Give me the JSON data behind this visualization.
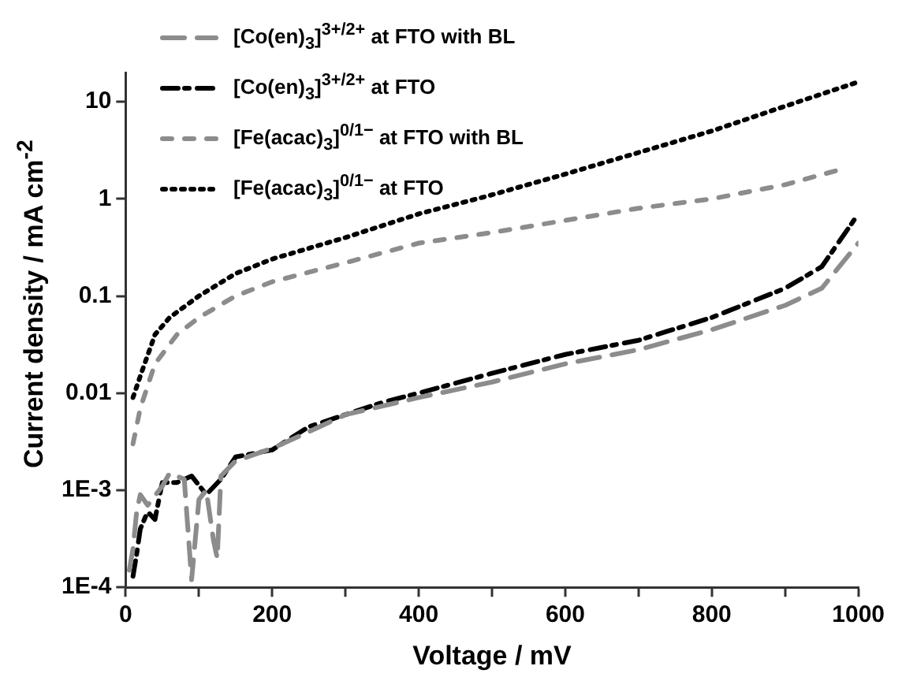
{
  "chart_data": {
    "type": "line",
    "xlabel": "Voltage / mV",
    "ylabel": "Current density / mA cm$^{-2}$",
    "log": "y",
    "legend": "top left",
    "grid": false,
    "marker": "none",
    "xlim": [
      0,
      1000
    ],
    "xticks": [
      0,
      {
        "value": 100,
        "label": null
      },
      200,
      {
        "value": 300,
        "label": null
      },
      400,
      {
        "value": 500,
        "label": null
      },
      600,
      {
        "value": 700,
        "label": null
      },
      800,
      {
        "value": 900,
        "label": null
      },
      1000
    ],
    "ylim": [
      0.0001,
      20
    ],
    "yticks": [
      {
        "value": 0.0001,
        "label": "1E-4"
      },
      {
        "value": 0.001,
        "label": "1E-3"
      },
      0.01,
      0.1,
      1,
      10
    ],
    "series": [
      {
        "name": "[Co(en)$_{3}$]$^{3+/2+}$ at FTO with BL",
        "color": "#8c8c8c",
        "line_style": "dashed",
        "x": [
          5,
          10,
          15,
          20,
          30,
          50,
          60,
          80,
          90,
          100,
          110,
          120,
          125,
          130,
          150,
          200,
          250,
          300,
          400,
          500,
          600,
          700,
          800,
          900,
          950,
          1000
        ],
        "values": [
          0.00015,
          0.00025,
          0.0006,
          0.0009,
          0.0007,
          0.0011,
          0.0015,
          0.0013,
          0.00012,
          0.0008,
          0.001,
          0.0003,
          0.0002,
          0.0014,
          0.002,
          0.0027,
          0.004,
          0.006,
          0.009,
          0.013,
          0.02,
          0.028,
          0.045,
          0.08,
          0.12,
          0.35
        ]
      },
      {
        "name": "[Co(en)$_{3}$]$^{3+/2+}$ at FTO",
        "color": "#000000",
        "line_style": "dashed",
        "x": [
          10,
          15,
          20,
          30,
          40,
          50,
          70,
          90,
          110,
          130,
          150,
          200,
          250,
          300,
          350,
          400,
          500,
          600,
          700,
          800,
          900,
          950,
          1000
        ],
        "values": [
          0.00013,
          0.00022,
          0.0004,
          0.0006,
          0.0005,
          0.0012,
          0.0012,
          0.0014,
          0.0009,
          0.0013,
          0.0022,
          0.0026,
          0.0045,
          0.006,
          0.008,
          0.01,
          0.016,
          0.025,
          0.035,
          0.06,
          0.12,
          0.2,
          0.7
        ]
      },
      {
        "name": "[Fe(acac)$_{3}$]$^{0/1−}$ at FTO with BL",
        "color": "#8c8c8c",
        "line_style": "dashed",
        "x": [
          10,
          20,
          40,
          70,
          100,
          150,
          200,
          300,
          400,
          500,
          600,
          700,
          800,
          900,
          975
        ],
        "values": [
          0.003,
          0.007,
          0.02,
          0.04,
          0.06,
          0.1,
          0.14,
          0.22,
          0.35,
          0.45,
          0.6,
          0.8,
          1.0,
          1.4,
          2.0
        ]
      },
      {
        "name": "[Fe(acac)$_{3}$]$^{0/1−}$ at FTO",
        "color": "#000000",
        "line_style": "dotted",
        "x": [
          10,
          20,
          40,
          60,
          100,
          150,
          200,
          300,
          400,
          500,
          600,
          700,
          800,
          900,
          1000
        ],
        "values": [
          0.009,
          0.015,
          0.04,
          0.06,
          0.1,
          0.17,
          0.24,
          0.4,
          0.7,
          1.1,
          1.8,
          3,
          5,
          9,
          16
        ]
      }
    ]
  }
}
